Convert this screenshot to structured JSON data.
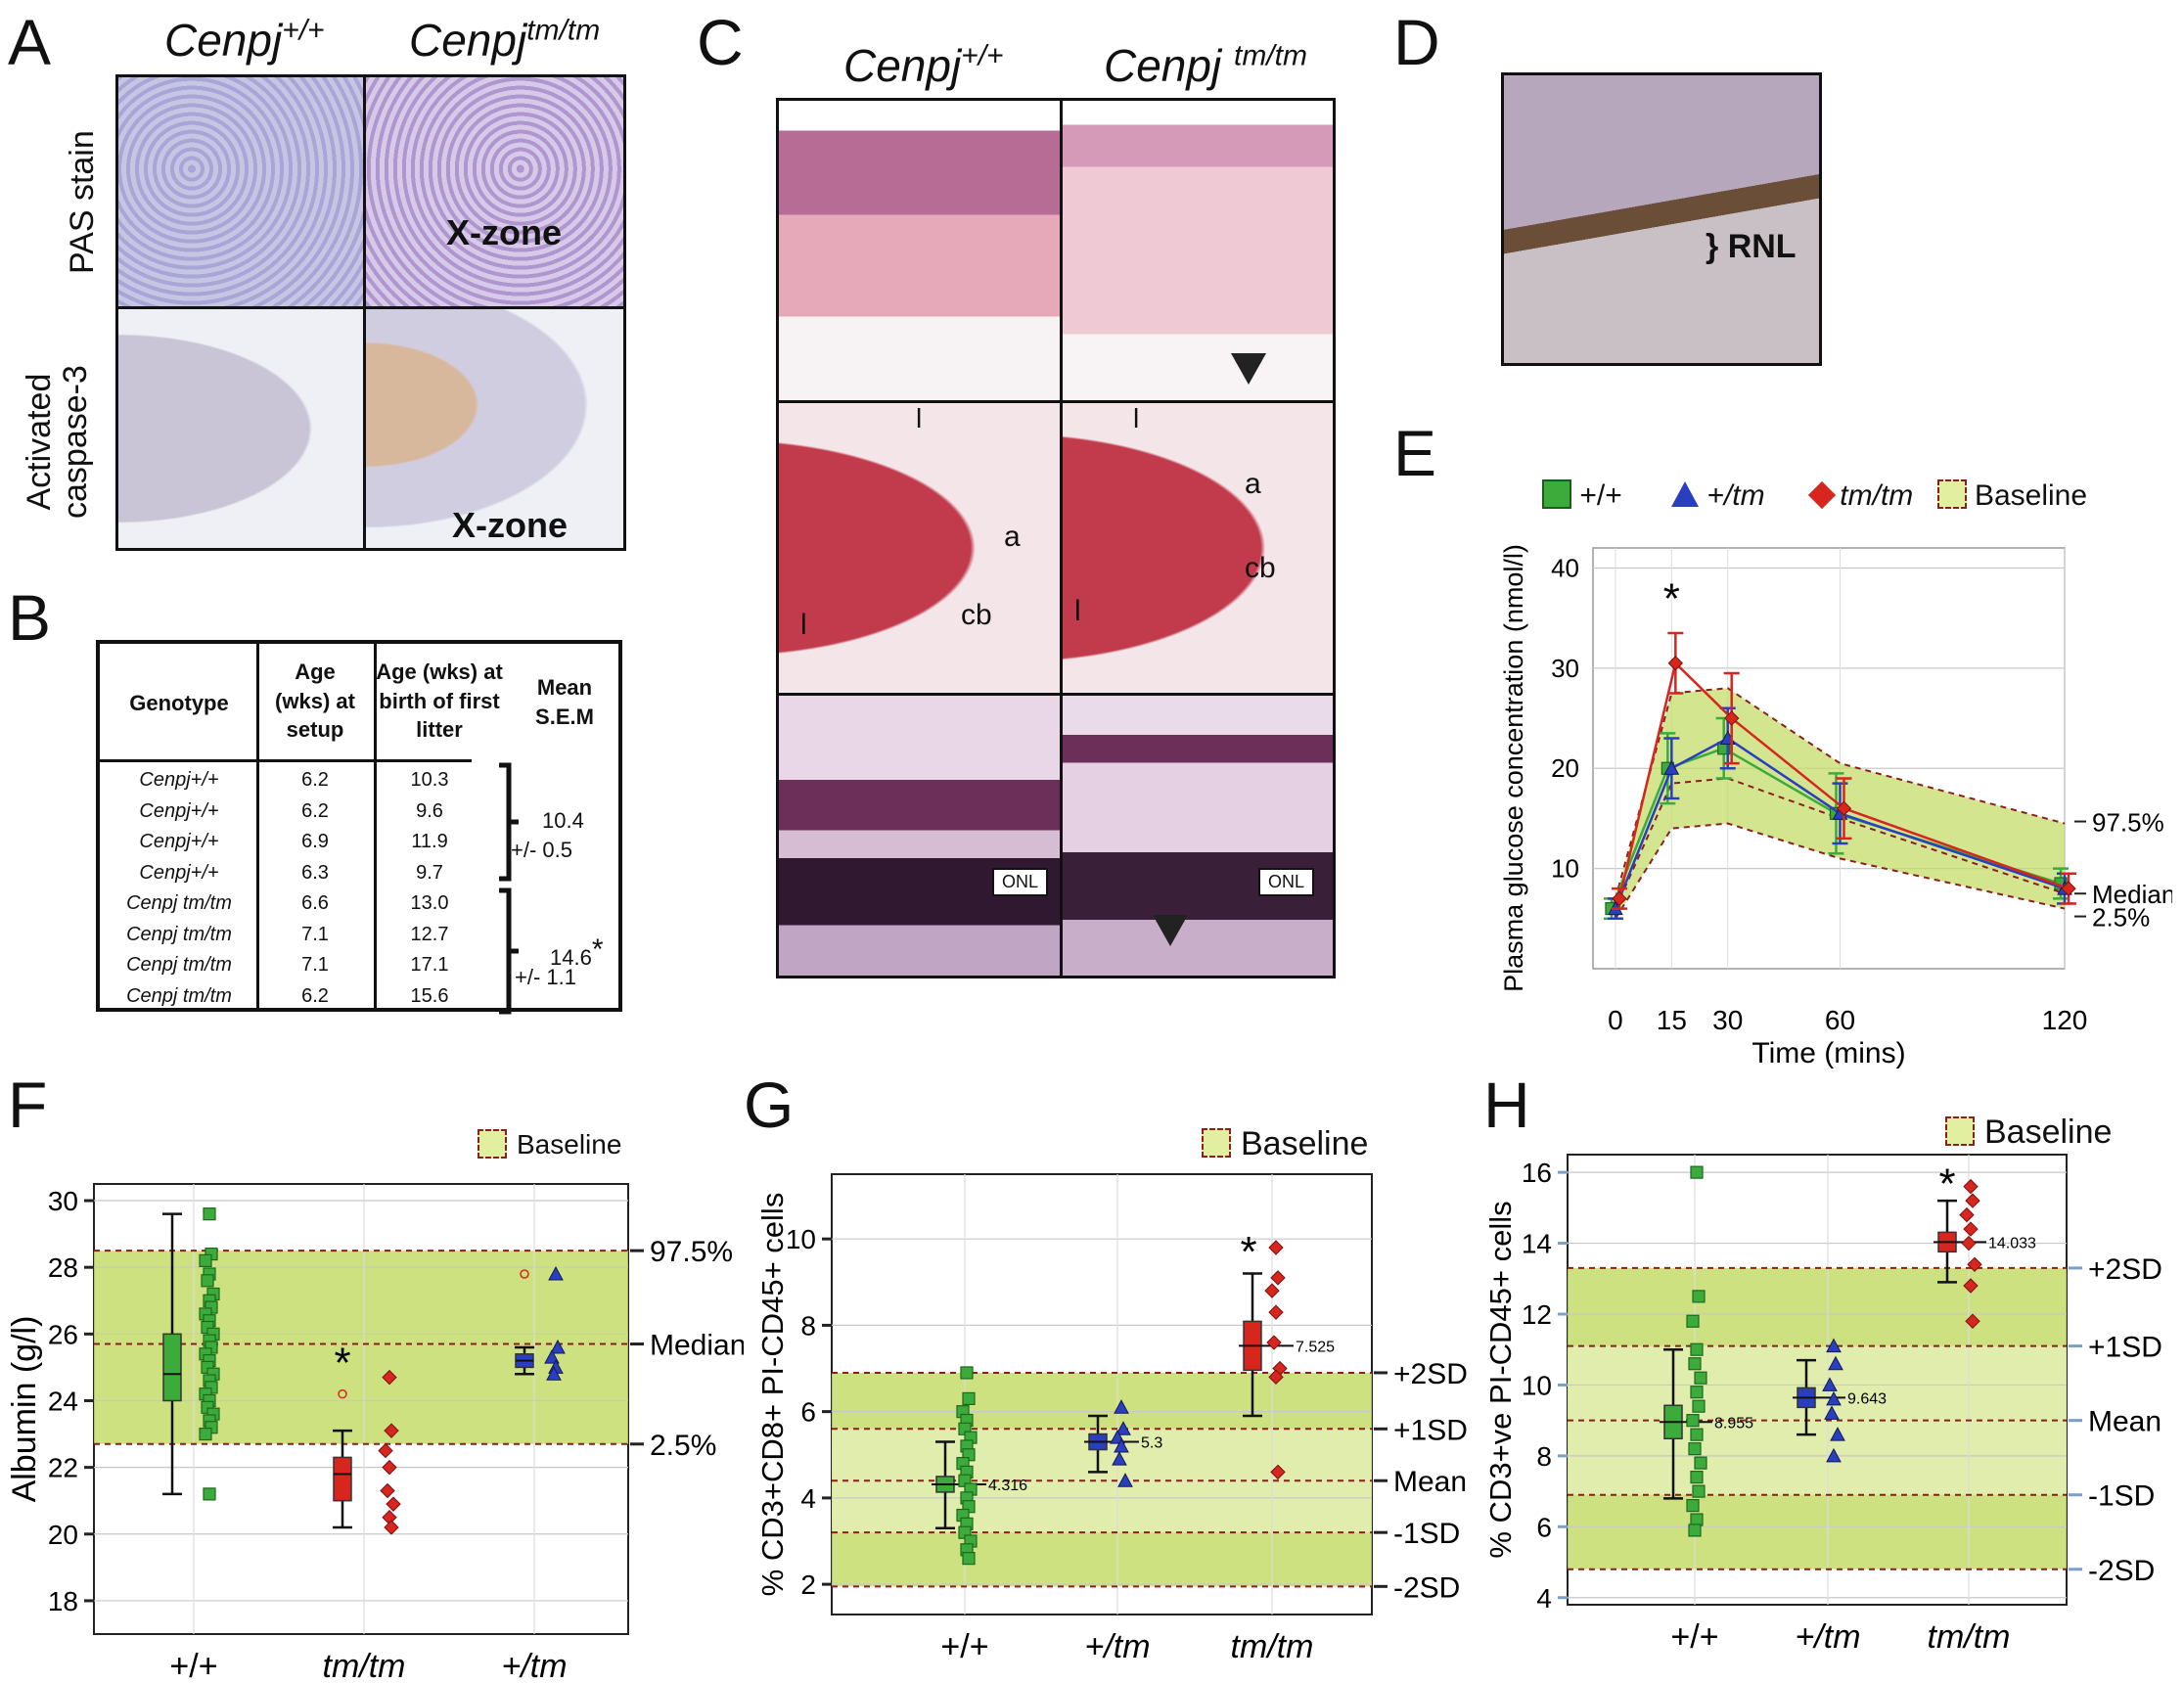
{
  "panels": {
    "A": "A",
    "B": "B",
    "C": "C",
    "D": "D",
    "E": "E",
    "F": "F",
    "G": "G",
    "H": "H"
  },
  "genotype_wt": {
    "base": "Cenpj",
    "sup": "+/+"
  },
  "genotype_mut": {
    "base": "Cenpj",
    "sup": "tm/tm"
  },
  "panel_a": {
    "row1": "PAS stain",
    "row2_line1": "Activated",
    "row2_line2": "caspase-3",
    "xzone": "X-zone"
  },
  "panel_b": {
    "headers": [
      "Genotype",
      "Age (wks) at setup",
      "Age (wks) at birth of first litter",
      "Mean S.E.M"
    ],
    "rows": [
      [
        "Cenpj+/+",
        "6.2",
        "10.3"
      ],
      [
        "Cenpj+/+",
        "6.2",
        "9.6"
      ],
      [
        "Cenpj+/+",
        "6.9",
        "11.9"
      ],
      [
        "Cenpj+/+",
        "6.3",
        "9.7"
      ],
      [
        "Cenpj tm/tm",
        "6.6",
        "13.0"
      ],
      [
        "Cenpj tm/tm",
        "7.1",
        "12.7"
      ],
      [
        "Cenpj tm/tm",
        "7.1",
        "17.1"
      ],
      [
        "Cenpj tm/tm",
        "6.2",
        "15.6"
      ]
    ],
    "mean_wt": "10.4",
    "sem_wt": "+/- 0.5",
    "mean_mut": "14.6",
    "mean_mut_star": "*",
    "sem_mut": "+/- 1.1"
  },
  "panel_c": {
    "labels": {
      "l": "l",
      "a": "a",
      "cb": "cb",
      "onl": "ONL"
    }
  },
  "panel_d": {
    "label": "RNL"
  },
  "colors": {
    "wt": "#3cab3c",
    "het": "#2a3fbf",
    "mut": "#d6261e",
    "baseline_fill": "#c6dc6a",
    "baseline_dash": "#8a1f1f"
  },
  "legend": {
    "wt": "+/+",
    "het": "+/tm",
    "mut": "tm/tm",
    "baseline": "Baseline"
  },
  "chart_data": [
    {
      "panel": "E",
      "type": "line",
      "ylabel": "Plasma glucose concentration (nmol/l)",
      "xlabel": "Time (mins)",
      "x": [
        0,
        15,
        30,
        60,
        120
      ],
      "xlim": [
        0,
        120
      ],
      "ylim": [
        0,
        40
      ],
      "yticks": [
        10,
        20,
        30,
        40
      ],
      "series": [
        {
          "name": "+/+",
          "values": [
            6,
            20,
            22,
            15.5,
            8.5
          ],
          "err": [
            1,
            3.5,
            3,
            4,
            1.5
          ]
        },
        {
          "name": "+/tm",
          "values": [
            6,
            20,
            23,
            15.5,
            8
          ],
          "err": [
            1,
            3,
            3,
            3,
            1.5
          ]
        },
        {
          "name": "tm/tm",
          "values": [
            7,
            30.5,
            25,
            16,
            8
          ],
          "err": [
            1,
            3,
            4.5,
            3,
            1.5
          ]
        }
      ],
      "baseline": {
        "upper": [
          7,
          27.5,
          28,
          20.5,
          14.5
        ],
        "median": [
          6,
          18.5,
          19,
          15,
          7.5
        ],
        "lower": [
          5,
          14,
          14.5,
          11,
          6
        ]
      },
      "right_labels": [
        "97.5%",
        "Median",
        "2.5%"
      ],
      "annotation": "*"
    },
    {
      "panel": "F",
      "type": "scatter",
      "ylabel": "Albumin (g/l)",
      "categories": [
        "+/+",
        "tm/tm",
        "+/tm"
      ],
      "ylim": [
        17,
        30.5
      ],
      "yticks": [
        18,
        20,
        22,
        24,
        26,
        28,
        30
      ],
      "baseline": {
        "upper": 28.5,
        "median": 25.7,
        "lower": 22.7
      },
      "right_labels": [
        "97.5%",
        "Median",
        "2.5%"
      ],
      "box": [
        {
          "category": "+/+",
          "min": 21.2,
          "q1": 24,
          "median": 24.8,
          "q3": 26,
          "max": 29.6
        },
        {
          "category": "tm/tm",
          "min": 20.2,
          "q1": 21,
          "median": 21.8,
          "q3": 22.3,
          "max": 23.1
        },
        {
          "category": "+/tm",
          "min": 24.8,
          "q1": 25,
          "median": 25.2,
          "q3": 25.4,
          "max": 25.6
        }
      ],
      "points": {
        "+/+": [
          29.6,
          28.4,
          28.2,
          27.8,
          27.6,
          27.2,
          27,
          26.8,
          26.6,
          26.4,
          26.2,
          26,
          25.8,
          25.6,
          25.4,
          25.2,
          25,
          24.8,
          24.6,
          24.4,
          24.2,
          24,
          23.8,
          23.6,
          23.4,
          23.2,
          23,
          21.2
        ],
        "tm/tm": [
          24.7,
          23.1,
          22.5,
          22,
          21.3,
          20.9,
          20.5,
          20.2
        ],
        "+/tm": [
          27.8,
          25.6,
          25.3,
          25,
          24.8
        ]
      },
      "outliers": {
        "tm/tm": [
          24.2
        ],
        "+/tm": [
          27.8
        ]
      },
      "annotation": "*"
    },
    {
      "panel": "G",
      "type": "scatter",
      "ylabel": "% CD3+CD8+ PI-CD45+ cells",
      "categories": [
        "+/+",
        "+/tm",
        "tm/tm"
      ],
      "ylim": [
        1.3,
        11.5
      ],
      "yticks": [
        2,
        4,
        6,
        8,
        10
      ],
      "baseline": {
        "plus2sd": 6.9,
        "plus1sd": 5.6,
        "mean": 4.4,
        "minus1sd": 3.2,
        "minus2sd": 1.95
      },
      "right_labels": [
        "+2SD",
        "+1SD",
        "Mean",
        "-1SD",
        "-2SD"
      ],
      "means": [
        {
          "category": "+/+",
          "value": 4.316,
          "label": "4.316"
        },
        {
          "category": "+/tm",
          "value": 5.3,
          "label": "5.3"
        },
        {
          "category": "tm/tm",
          "value": 7.525,
          "label": "7.525"
        }
      ],
      "points": {
        "+/+": [
          6.9,
          6.3,
          6,
          5.8,
          5.6,
          5.4,
          5.2,
          5,
          4.8,
          4.6,
          4.4,
          4.2,
          4,
          3.8,
          3.6,
          3.4,
          3.2,
          3,
          2.8,
          2.6
        ],
        "+/tm": [
          6.1,
          5.6,
          5.4,
          5.2,
          4.9,
          4.4
        ],
        "tm/tm": [
          9.8,
          9.1,
          8.8,
          8.3,
          7.6,
          7,
          6.8,
          4.6
        ]
      },
      "annotation": "*"
    },
    {
      "panel": "H",
      "type": "scatter",
      "ylabel": "% CD3+ve PI-CD45+ cells",
      "categories": [
        "+/+",
        "+/tm",
        "tm/tm"
      ],
      "ylim": [
        3.8,
        16.5
      ],
      "yticks": [
        4,
        6,
        8,
        10,
        12,
        14,
        16
      ],
      "baseline": {
        "plus2sd": 13.3,
        "plus1sd": 11.1,
        "mean": 9,
        "minus1sd": 6.9,
        "minus2sd": 4.8
      },
      "right_labels": [
        "+2SD",
        "+1SD",
        "Mean",
        "-1SD",
        "-2SD"
      ],
      "means": [
        {
          "category": "+/+",
          "value": 8.955,
          "label": "8.955"
        },
        {
          "category": "+/tm",
          "value": 9.643,
          "label": "9.643"
        },
        {
          "category": "tm/tm",
          "value": 14.033,
          "label": "14.033"
        }
      ],
      "points": {
        "+/+": [
          16,
          12.5,
          11.8,
          11,
          10.6,
          10.2,
          9.8,
          9.4,
          9,
          8.6,
          8.2,
          7.8,
          7.4,
          7,
          6.6,
          6.2,
          5.9
        ],
        "+/tm": [
          11.1,
          10.6,
          10,
          9.6,
          9.2,
          8.6,
          8
        ],
        "tm/tm": [
          15.6,
          15.2,
          14.8,
          14.4,
          14,
          13.4,
          12.8,
          11.8
        ]
      },
      "annotation": "*"
    }
  ]
}
